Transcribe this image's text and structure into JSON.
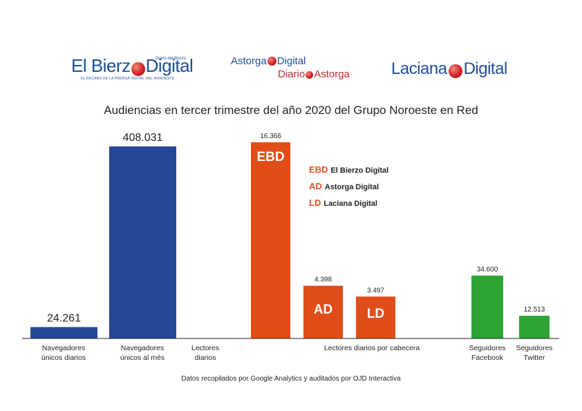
{
  "logos": {
    "el_bierzo_digital": {
      "name_left": "El Bierz",
      "name_right": "Digital",
      "tagline": "Diario del Bierzo",
      "subtitle": "EL DECANO DE LA PRENSA DIGITAL DEL NOROESTE"
    },
    "astorga_digital": {
      "line1_left": "Astorga",
      "line1_right": "Digital",
      "line2_left": "Diario",
      "line2_right": "Astorga"
    },
    "laciana_digital": {
      "name_left": "Laciana",
      "name_right": "Digital"
    }
  },
  "colors": {
    "blue": "#264796",
    "orange": "#e14d18",
    "green": "#2fa435",
    "legend_code": "#e2531f"
  },
  "chart_data": {
    "type": "bar",
    "title": "Audiencias en tercer trimestre del año 2020 del Grupo Noroeste en Red",
    "bars": [
      {
        "key": "navegadores_diarios",
        "value_label": "24.261",
        "value": 24261,
        "color": "blue"
      },
      {
        "key": "navegadores_mes",
        "value_label": "408.031",
        "value": 408031,
        "color": "blue"
      },
      {
        "key": "ebd",
        "value_label": "16.366",
        "value": 16366,
        "color": "orange",
        "inner_label": "EBD"
      },
      {
        "key": "ad",
        "value_label": "4.398",
        "value": 4398,
        "color": "orange",
        "inner_label": "AD"
      },
      {
        "key": "ld",
        "value_label": "3.497",
        "value": 3497,
        "color": "orange",
        "inner_label": "LD"
      },
      {
        "key": "facebook",
        "value_label": "34.600",
        "value": 34600,
        "color": "green"
      },
      {
        "key": "twitter",
        "value_label": "12.513",
        "value": 12513,
        "color": "green"
      }
    ],
    "categories": [
      {
        "line1": "Navegadores",
        "line2": "únicos diarios"
      },
      {
        "line1": "Navegadores",
        "line2": "únicos al més"
      },
      {
        "line1": "Lectores",
        "line2": "diarios"
      },
      {
        "line1": "Lectores diarios por cabecera",
        "line2": ""
      },
      {
        "line1": "Seguidores",
        "line2": "Facebook"
      },
      {
        "line1": "Seguidores",
        "line2": "Twitter"
      }
    ],
    "legend": [
      {
        "code": "EBD",
        "label": "El Bierzo Digital"
      },
      {
        "code": "AD",
        "label": "Astorga Digital"
      },
      {
        "code": "LD",
        "label": "Laciana Digital"
      }
    ],
    "grid": false
  },
  "footnote": "Datos recopilados por Google Analytics y auditados por OJD Interactiva"
}
